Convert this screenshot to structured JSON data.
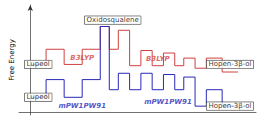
{
  "chart_data": {
    "type": "line",
    "ylabel": "Free Energy",
    "x": [
      0.0,
      0.7,
      0.7,
      1.5,
      1.5,
      2.3,
      2.3,
      3.1,
      3.1,
      3.5,
      3.5,
      3.9,
      3.9,
      4.4,
      4.4,
      4.9,
      4.9,
      5.4,
      5.4,
      5.9,
      5.9,
      6.4,
      6.4,
      6.8,
      6.8,
      7.3,
      7.3,
      7.8,
      7.8,
      8.5,
      8.5,
      9.2
    ],
    "series": [
      {
        "name": "B3LYP",
        "color": "#d04040",
        "values": [
          3.8,
          3.8,
          5.0,
          5.0,
          3.8,
          3.8,
          5.0,
          5.0,
          6.8,
          6.8,
          5.0,
          5.0,
          6.5,
          6.5,
          3.7,
          3.7,
          4.9,
          4.9,
          3.7,
          3.7,
          4.7,
          4.7,
          3.7,
          3.7,
          4.3,
          4.3,
          3.5,
          3.5,
          4.3,
          4.3,
          3.2,
          3.2
        ]
      },
      {
        "name": "mPW1PW91",
        "color": "#2828b8",
        "values": [
          1.2,
          1.2,
          2.6,
          2.6,
          1.2,
          1.2,
          2.6,
          2.6,
          6.8,
          6.8,
          1.8,
          1.8,
          3.1,
          3.1,
          1.8,
          1.8,
          3.1,
          3.1,
          1.8,
          1.8,
          3.0,
          3.0,
          1.8,
          1.8,
          2.8,
          2.8,
          0.5,
          0.5,
          1.8,
          1.8,
          0.5,
          0.5
        ]
      }
    ],
    "xlim": [
      -0.5,
      10.0
    ],
    "ylim": [
      -0.2,
      8.5
    ],
    "xticks": [],
    "yticks": [],
    "tick_labels": false,
    "grid": false,
    "annotations": [
      {
        "text": "Lupeol",
        "x": 0.35,
        "y": 3.8
      },
      {
        "text": "B3LYP",
        "x": 2.3,
        "y": 4.3
      },
      {
        "text": "Oxidosqualene",
        "x": 3.65,
        "y": 7.3
      },
      {
        "text": "B3LYP",
        "x": 5.65,
        "y": 4.2
      },
      {
        "text": "Hopen-3β-ol",
        "x": 8.85,
        "y": 3.8
      },
      {
        "text": "Lupeol",
        "x": 0.35,
        "y": 1.2
      },
      {
        "text": "mPW1PW91",
        "x": 2.3,
        "y": 0.5
      },
      {
        "text": "mPW1PW91",
        "x": 6.1,
        "y": 0.85
      },
      {
        "text": "Hopen-3β-ol",
        "x": 8.85,
        "y": 0.5
      }
    ]
  }
}
